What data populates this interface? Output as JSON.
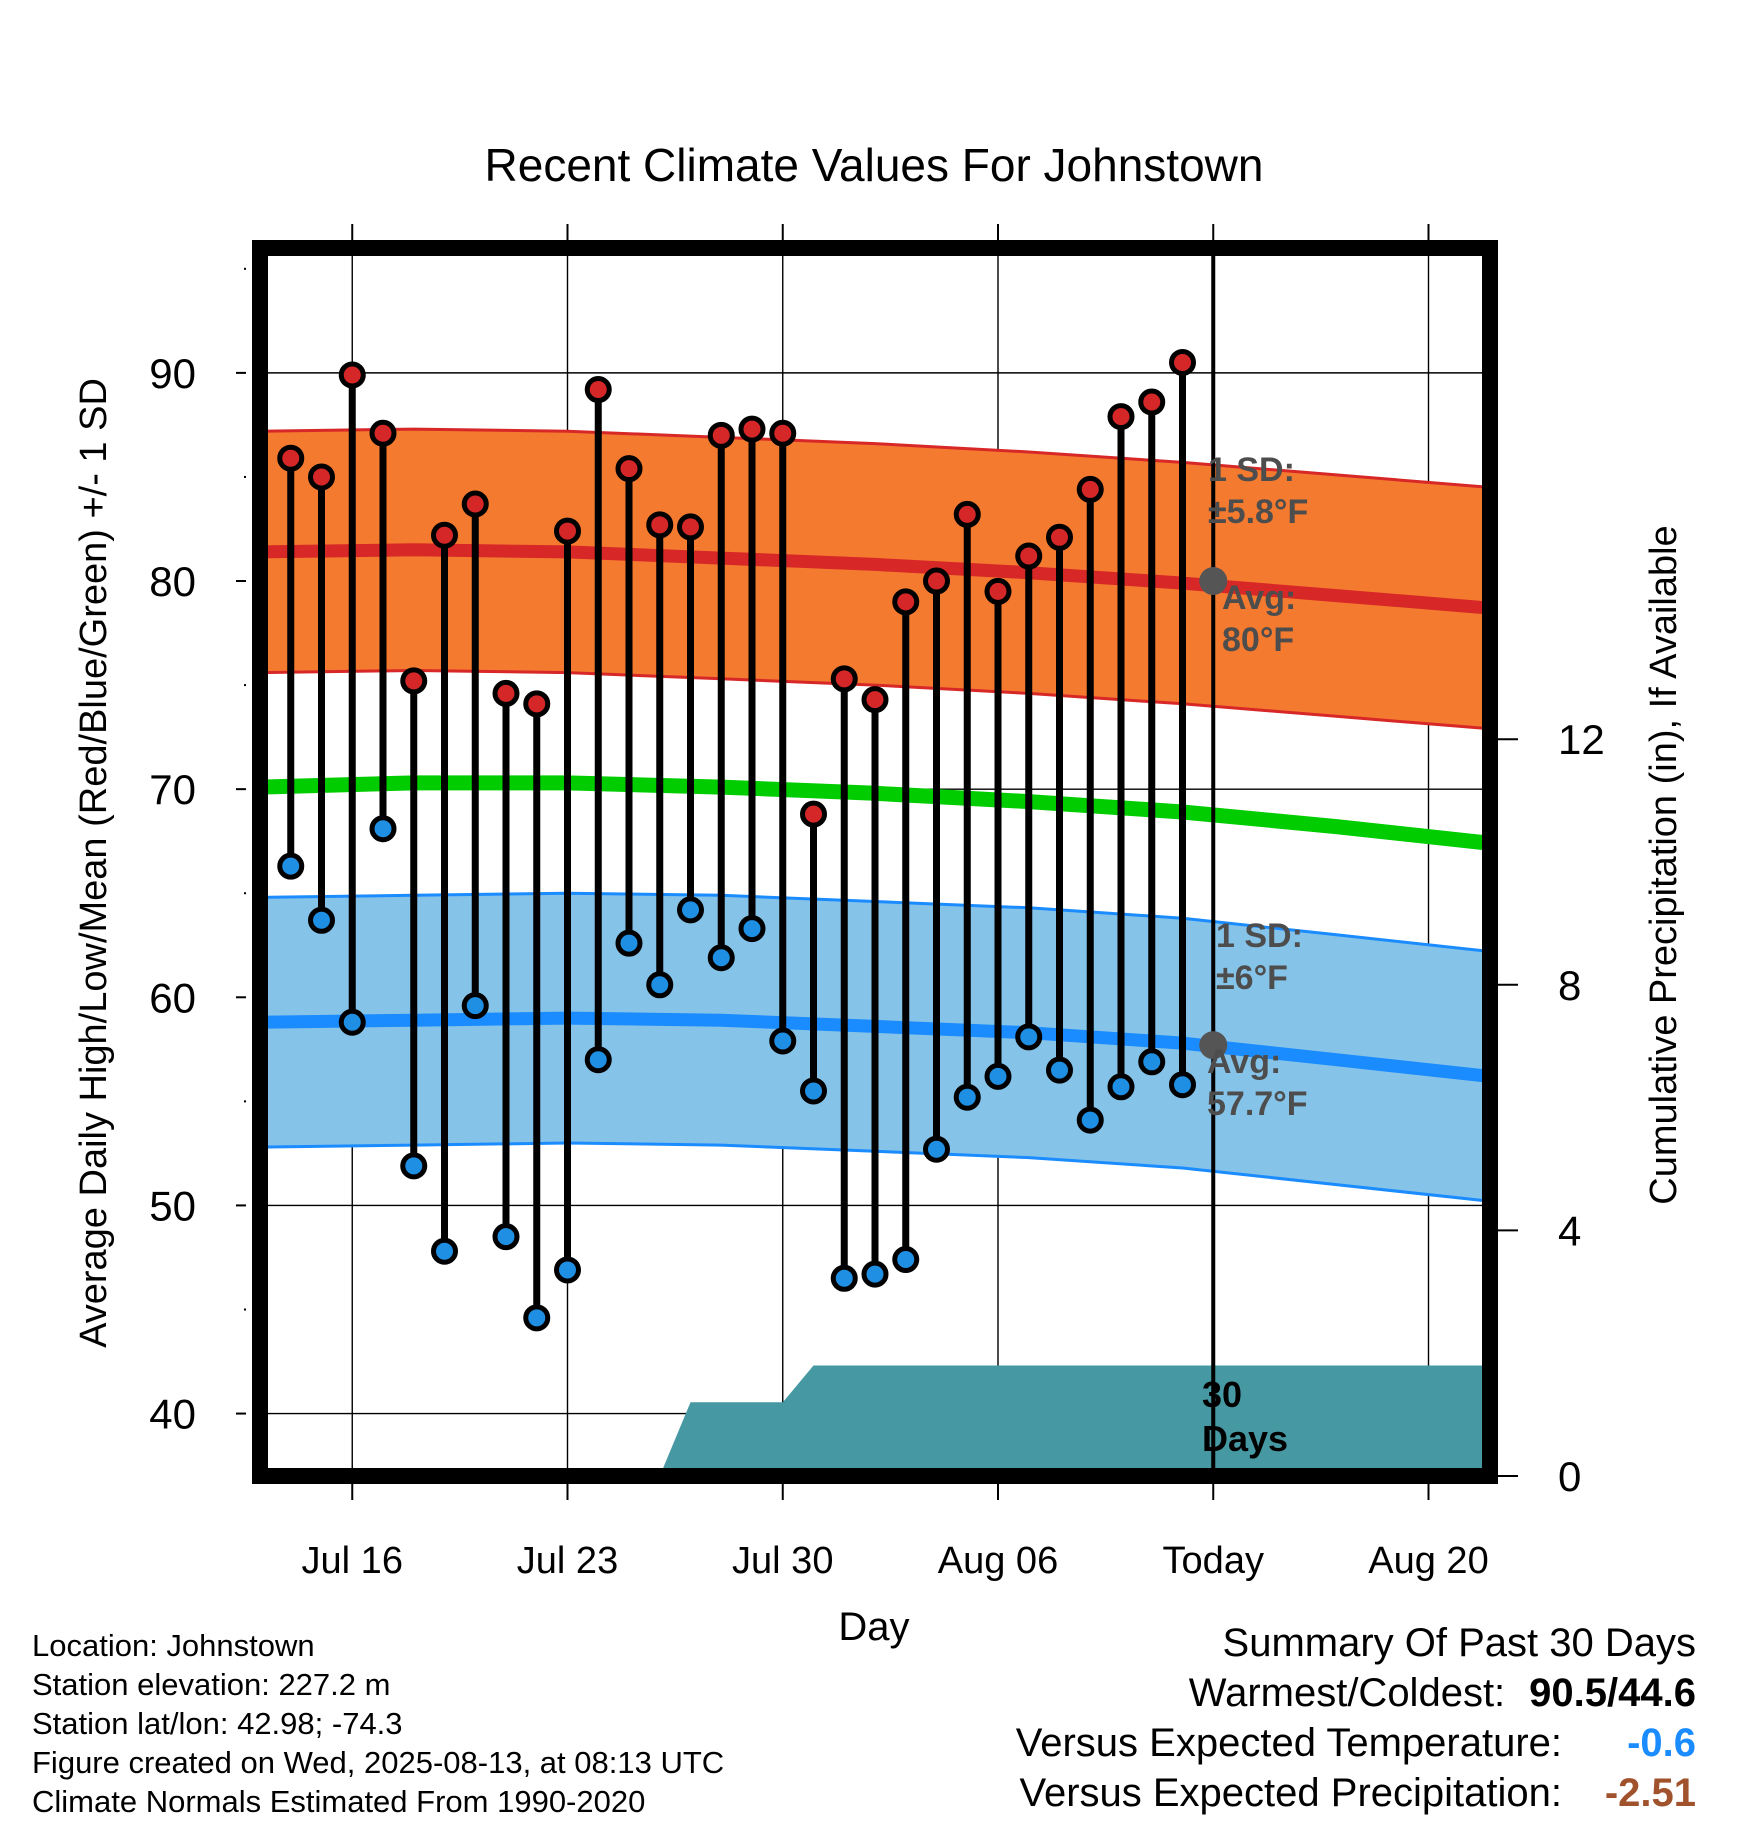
{
  "chart_data": {
    "type": "line",
    "title": "Recent Climate Values For Johnstown",
    "xlabel": "Day",
    "ylabel": "Average Daily High/Low/Mean (Red/Blue/Green) +/- 1 SD",
    "y2label": "Cumulative Precipitation (in), If Available",
    "xlim": [
      "2025-07-13",
      "2025-08-22"
    ],
    "ylim": [
      37,
      96
    ],
    "y2lim": [
      0,
      20
    ],
    "grid": true,
    "x_ticks": [
      {
        "date": "2025-07-16",
        "label": "Jul 16"
      },
      {
        "date": "2025-07-23",
        "label": "Jul 23"
      },
      {
        "date": "2025-07-30",
        "label": "Jul 30"
      },
      {
        "date": "2025-08-06",
        "label": "Aug 06"
      },
      {
        "date": "2025-08-13",
        "label": "Today"
      },
      {
        "date": "2025-08-20",
        "label": "Aug 20"
      }
    ],
    "y_ticks": [
      40,
      50,
      60,
      70,
      80,
      90
    ],
    "y2_ticks": [
      0,
      4,
      8,
      12
    ],
    "today": "2025-08-13",
    "normals": {
      "x": [
        "2025-07-13",
        "2025-07-18",
        "2025-07-23",
        "2025-07-28",
        "2025-08-02",
        "2025-08-07",
        "2025-08-12",
        "2025-08-17",
        "2025-08-22"
      ],
      "high_avg": [
        81.4,
        81.5,
        81.4,
        81.1,
        80.8,
        80.4,
        79.9,
        79.3,
        78.7
      ],
      "high_sd": 5.8,
      "low_avg": [
        58.8,
        58.9,
        59.0,
        58.9,
        58.6,
        58.3,
        57.8,
        57.0,
        56.2
      ],
      "low_sd": 6,
      "mean_avg": [
        70.1,
        70.3,
        70.3,
        70.1,
        69.8,
        69.4,
        68.9,
        68.2,
        67.4
      ]
    },
    "series": [
      {
        "name": "High",
        "x": [
          "2025-07-14",
          "2025-07-15",
          "2025-07-16",
          "2025-07-17",
          "2025-07-18",
          "2025-07-19",
          "2025-07-20",
          "2025-07-21",
          "2025-07-22",
          "2025-07-23",
          "2025-07-24",
          "2025-07-25",
          "2025-07-26",
          "2025-07-27",
          "2025-07-28",
          "2025-07-29",
          "2025-07-30",
          "2025-07-31",
          "2025-08-01",
          "2025-08-02",
          "2025-08-03",
          "2025-08-04",
          "2025-08-05",
          "2025-08-06",
          "2025-08-07",
          "2025-08-08",
          "2025-08-09",
          "2025-08-10",
          "2025-08-11",
          "2025-08-12"
        ],
        "values": [
          85.9,
          85.0,
          89.9,
          87.1,
          75.2,
          82.2,
          83.7,
          74.6,
          74.1,
          82.4,
          89.2,
          85.4,
          82.7,
          82.6,
          87.0,
          87.3,
          87.1,
          68.8,
          75.3,
          74.3,
          79.0,
          80.0,
          83.2,
          79.5,
          81.2,
          82.1,
          84.4,
          87.9,
          88.6,
          90.5
        ]
      },
      {
        "name": "Low",
        "x": [
          "2025-07-14",
          "2025-07-15",
          "2025-07-16",
          "2025-07-17",
          "2025-07-18",
          "2025-07-19",
          "2025-07-20",
          "2025-07-21",
          "2025-07-22",
          "2025-07-23",
          "2025-07-24",
          "2025-07-25",
          "2025-07-26",
          "2025-07-27",
          "2025-07-28",
          "2025-07-29",
          "2025-07-30",
          "2025-07-31",
          "2025-08-01",
          "2025-08-02",
          "2025-08-03",
          "2025-08-04",
          "2025-08-05",
          "2025-08-06",
          "2025-08-07",
          "2025-08-08",
          "2025-08-09",
          "2025-08-10",
          "2025-08-11",
          "2025-08-12"
        ],
        "values": [
          66.3,
          63.7,
          58.8,
          68.1,
          51.9,
          47.8,
          59.6,
          48.5,
          44.6,
          46.9,
          57.0,
          62.6,
          60.6,
          64.2,
          61.9,
          63.3,
          57.9,
          55.5,
          46.5,
          46.7,
          47.4,
          52.7,
          55.2,
          56.2,
          58.1,
          56.5,
          54.1,
          55.7,
          56.9,
          55.8
        ]
      }
    ],
    "precipitation": {
      "x": [
        "2025-07-13",
        "2025-07-26",
        "2025-07-27",
        "2025-07-30",
        "2025-07-31",
        "2025-08-22"
      ],
      "values": [
        0,
        0,
        1.2,
        1.2,
        1.8,
        1.8
      ]
    },
    "annotations": {
      "high_sd": [
        "1 SD:",
        "±5.8°F"
      ],
      "high_avg": [
        "Avg:",
        "80°F"
      ],
      "low_sd": [
        "1 SD:",
        "±6°F"
      ],
      "low_avg": [
        "Avg:",
        "57.7°F"
      ],
      "period": [
        "30",
        "Days"
      ]
    },
    "colors": {
      "high_band": "#F47A2F",
      "high_line": "#D72727",
      "low_band": "#86C3E8",
      "low_line": "#1A8CFF",
      "mean_line": "#00CC00",
      "precip": "#4699A3",
      "high_dot": "#D62728",
      "low_dot": "#1F8FE3",
      "annotation": "#4D4D4D"
    }
  },
  "footer": {
    "location": "Location: Johnstown",
    "elevation": "Station elevation: 227.2 m",
    "latlon": "Station lat/lon: 42.98; -74.3",
    "created": "Figure created on Wed, 2025-08-13, at 08:13 UTC",
    "normals": "Climate Normals Estimated From 1990-2020"
  },
  "summary": {
    "title": "Summary Of Past 30 Days",
    "warmest_label": "Warmest/Coldest:",
    "warmest_value": "90.5/44.6",
    "temp_label": "Versus Expected Temperature:",
    "temp_value": "-0.6",
    "temp_color": "#1A8CFF",
    "precip_label": "Versus Expected Precipitation:",
    "precip_value": "-2.51",
    "precip_color": "#A0522D"
  }
}
